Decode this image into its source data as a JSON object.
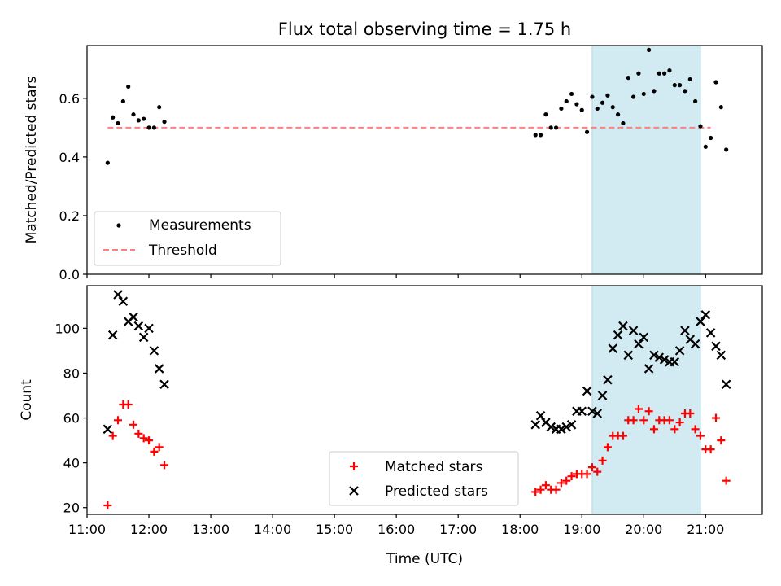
{
  "chart_data": [
    {
      "type": "scatter",
      "title": "Flux total observing time = 1.75 h",
      "ylabel": "Matched/Predicted stars",
      "xlabel": "",
      "xlim": [
        "11:00",
        "21:55"
      ],
      "ylim": [
        0,
        0.78
      ],
      "yticks": [
        0.0,
        0.2,
        0.4,
        0.6
      ],
      "ytick_labels": [
        "0.0",
        "0.2",
        "0.4",
        "0.6"
      ],
      "xticks": [
        "11:00",
        "12:00",
        "13:00",
        "14:00",
        "15:00",
        "16:00",
        "17:00",
        "18:00",
        "19:00",
        "20:00",
        "21:00"
      ],
      "xtick_labels_shown": false,
      "shaded_region": {
        "x": [
          "19:10",
          "20:55"
        ],
        "color": "#add8e6"
      },
      "threshold": {
        "name": "Threshold",
        "value": 0.5,
        "x": [
          "11:20",
          "21:05"
        ],
        "color": "#ff7f7f",
        "style": "dashed"
      },
      "legend": {
        "placement": "lower-left",
        "entries": [
          "Measurements",
          "Threshold"
        ]
      },
      "series": [
        {
          "name": "Measurements",
          "color": "#000000",
          "marker": "dot",
          "points": [
            [
              "11:20",
              0.38
            ],
            [
              "11:25",
              0.535
            ],
            [
              "11:30",
              0.515
            ],
            [
              "11:35",
              0.59
            ],
            [
              "11:40",
              0.64
            ],
            [
              "11:45",
              0.545
            ],
            [
              "11:50",
              0.525
            ],
            [
              "11:55",
              0.53
            ],
            [
              "12:00",
              0.5
            ],
            [
              "12:05",
              0.5
            ],
            [
              "12:10",
              0.57
            ],
            [
              "12:15",
              0.52
            ],
            [
              "18:15",
              0.475
            ],
            [
              "18:20",
              0.475
            ],
            [
              "18:25",
              0.545
            ],
            [
              "18:30",
              0.5
            ],
            [
              "18:35",
              0.5
            ],
            [
              "18:40",
              0.565
            ],
            [
              "18:45",
              0.59
            ],
            [
              "18:50",
              0.615
            ],
            [
              "18:55",
              0.58
            ],
            [
              "19:00",
              0.56
            ],
            [
              "19:05",
              0.485
            ],
            [
              "19:10",
              0.605
            ],
            [
              "19:15",
              0.565
            ],
            [
              "19:20",
              0.585
            ],
            [
              "19:25",
              0.61
            ],
            [
              "19:30",
              0.57
            ],
            [
              "19:35",
              0.545
            ],
            [
              "19:40",
              0.515
            ],
            [
              "19:45",
              0.67
            ],
            [
              "19:50",
              0.605
            ],
            [
              "19:55",
              0.685
            ],
            [
              "20:00",
              0.615
            ],
            [
              "20:05",
              0.765
            ],
            [
              "20:10",
              0.625
            ],
            [
              "20:15",
              0.685
            ],
            [
              "20:20",
              0.685
            ],
            [
              "20:25",
              0.695
            ],
            [
              "20:30",
              0.645
            ],
            [
              "20:35",
              0.645
            ],
            [
              "20:40",
              0.625
            ],
            [
              "20:45",
              0.665
            ],
            [
              "20:50",
              0.59
            ],
            [
              "20:55",
              0.505
            ],
            [
              "21:00",
              0.435
            ],
            [
              "21:05",
              0.465
            ],
            [
              "21:10",
              0.655
            ],
            [
              "21:15",
              0.57
            ],
            [
              "21:20",
              0.425
            ]
          ]
        }
      ]
    },
    {
      "type": "scatter",
      "title": "",
      "ylabel": "Count",
      "xlabel": "Time (UTC)",
      "xlim": [
        "11:00",
        "21:55"
      ],
      "ylim": [
        17,
        119
      ],
      "yticks": [
        20,
        40,
        60,
        80,
        100
      ],
      "ytick_labels": [
        "20",
        "40",
        "60",
        "80",
        "100"
      ],
      "xticks": [
        "11:00",
        "12:00",
        "13:00",
        "14:00",
        "15:00",
        "16:00",
        "17:00",
        "18:00",
        "19:00",
        "20:00",
        "21:00"
      ],
      "xtick_labels": [
        "11:00",
        "12:00",
        "13:00",
        "14:00",
        "15:00",
        "16:00",
        "17:00",
        "18:00",
        "19:00",
        "20:00",
        "21:00"
      ],
      "shaded_region": {
        "x": [
          "19:10",
          "20:55"
        ],
        "color": "#add8e6"
      },
      "legend": {
        "placement": "lower-center",
        "entries": [
          "Matched stars",
          "Predicted stars"
        ]
      },
      "series": [
        {
          "name": "Matched stars",
          "color": "#ff0000",
          "marker": "plus",
          "points": [
            [
              "11:20",
              21
            ],
            [
              "11:25",
              52
            ],
            [
              "11:30",
              59
            ],
            [
              "11:35",
              66
            ],
            [
              "11:40",
              66
            ],
            [
              "11:45",
              57
            ],
            [
              "11:50",
              53
            ],
            [
              "11:55",
              51
            ],
            [
              "12:00",
              50
            ],
            [
              "12:05",
              45
            ],
            [
              "12:10",
              47
            ],
            [
              "12:15",
              39
            ],
            [
              "18:15",
              27
            ],
            [
              "18:20",
              28
            ],
            [
              "18:25",
              30
            ],
            [
              "18:30",
              28
            ],
            [
              "18:35",
              28
            ],
            [
              "18:40",
              31
            ],
            [
              "18:45",
              32
            ],
            [
              "18:50",
              34
            ],
            [
              "18:55",
              35
            ],
            [
              "19:00",
              35
            ],
            [
              "19:05",
              35
            ],
            [
              "19:10",
              38
            ],
            [
              "19:15",
              36
            ],
            [
              "19:20",
              41
            ],
            [
              "19:25",
              47
            ],
            [
              "19:30",
              52
            ],
            [
              "19:35",
              52
            ],
            [
              "19:40",
              52
            ],
            [
              "19:45",
              59
            ],
            [
              "19:50",
              59
            ],
            [
              "19:55",
              64
            ],
            [
              "20:00",
              59
            ],
            [
              "20:05",
              63
            ],
            [
              "20:10",
              55
            ],
            [
              "20:15",
              59
            ],
            [
              "20:20",
              59
            ],
            [
              "20:25",
              59
            ],
            [
              "20:30",
              55
            ],
            [
              "20:35",
              58
            ],
            [
              "20:40",
              62
            ],
            [
              "20:45",
              62
            ],
            [
              "20:50",
              55
            ],
            [
              "20:55",
              52
            ],
            [
              "21:00",
              46
            ],
            [
              "21:05",
              46
            ],
            [
              "21:10",
              60
            ],
            [
              "21:15",
              50
            ],
            [
              "21:20",
              32
            ]
          ]
        },
        {
          "name": "Predicted stars",
          "color": "#000000",
          "marker": "x",
          "points": [
            [
              "11:20",
              55
            ],
            [
              "11:25",
              97
            ],
            [
              "11:30",
              115
            ],
            [
              "11:35",
              112
            ],
            [
              "11:40",
              103
            ],
            [
              "11:45",
              105
            ],
            [
              "11:50",
              101
            ],
            [
              "11:55",
              96
            ],
            [
              "12:00",
              100
            ],
            [
              "12:05",
              90
            ],
            [
              "12:10",
              82
            ],
            [
              "12:15",
              75
            ],
            [
              "18:15",
              57
            ],
            [
              "18:20",
              61
            ],
            [
              "18:25",
              58
            ],
            [
              "18:30",
              56
            ],
            [
              "18:35",
              55
            ],
            [
              "18:40",
              55
            ],
            [
              "18:45",
              56
            ],
            [
              "18:50",
              57
            ],
            [
              "18:55",
              63
            ],
            [
              "19:00",
              63
            ],
            [
              "19:05",
              72
            ],
            [
              "19:10",
              63
            ],
            [
              "19:15",
              62
            ],
            [
              "19:20",
              70
            ],
            [
              "19:25",
              77
            ],
            [
              "19:30",
              91
            ],
            [
              "19:35",
              97
            ],
            [
              "19:40",
              101
            ],
            [
              "19:45",
              88
            ],
            [
              "19:50",
              99
            ],
            [
              "19:55",
              93
            ],
            [
              "20:00",
              96
            ],
            [
              "20:05",
              82
            ],
            [
              "20:10",
              88
            ],
            [
              "20:15",
              87
            ],
            [
              "20:20",
              86
            ],
            [
              "20:25",
              85
            ],
            [
              "20:30",
              85
            ],
            [
              "20:35",
              90
            ],
            [
              "20:40",
              99
            ],
            [
              "20:45",
              95
            ],
            [
              "20:50",
              93
            ],
            [
              "20:55",
              103
            ],
            [
              "21:00",
              106
            ],
            [
              "21:05",
              98
            ],
            [
              "21:10",
              92
            ],
            [
              "21:15",
              88
            ],
            [
              "21:20",
              75
            ]
          ]
        }
      ]
    }
  ]
}
